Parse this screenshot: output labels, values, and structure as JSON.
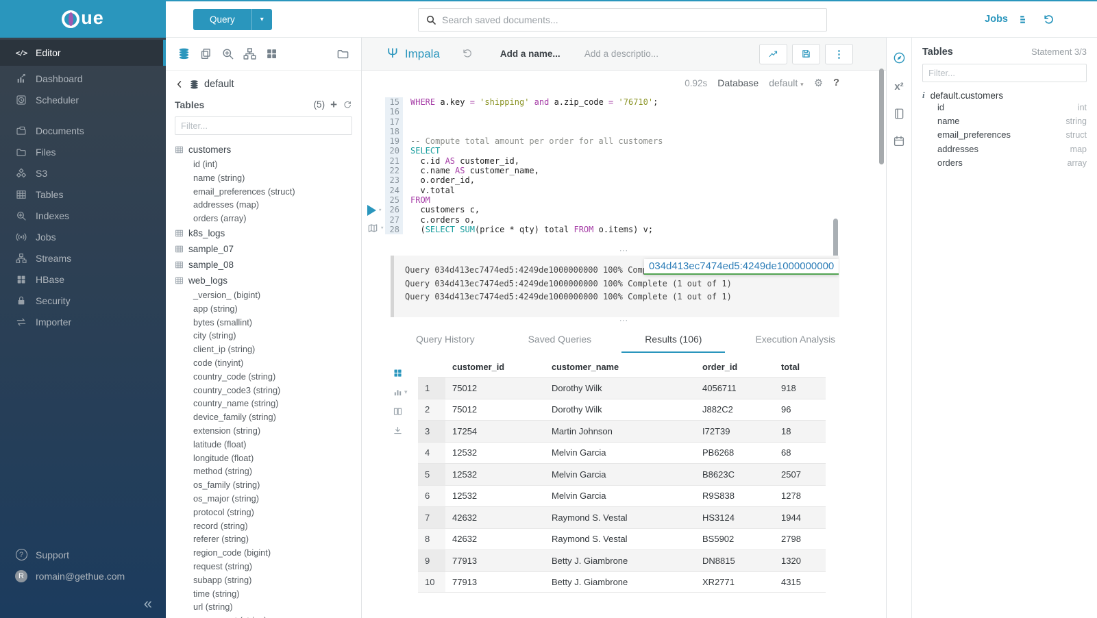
{
  "brand": {
    "logo_mark": "H",
    "logo_text": "ue"
  },
  "topbar": {
    "query_button": "Query",
    "search_placeholder": "Search saved documents...",
    "jobs_label": "Jobs"
  },
  "sidebar": {
    "items": [
      {
        "label": "Editor",
        "icon": "code",
        "active": true
      },
      {
        "label": "Dashboard",
        "icon": "dashboard"
      },
      {
        "label": "Scheduler",
        "icon": "scheduler"
      },
      {
        "label": "Documents",
        "icon": "documents",
        "gap_before": true
      },
      {
        "label": "Files",
        "icon": "folder"
      },
      {
        "label": "S3",
        "icon": "cubes"
      },
      {
        "label": "Tables",
        "icon": "table"
      },
      {
        "label": "Indexes",
        "icon": "zoom-in"
      },
      {
        "label": "Jobs",
        "icon": "radio"
      },
      {
        "label": "Streams",
        "icon": "sitemap"
      },
      {
        "label": "HBase",
        "icon": "grid"
      },
      {
        "label": "Security",
        "icon": "lock"
      },
      {
        "label": "Importer",
        "icon": "swap"
      }
    ],
    "support_label": "Support",
    "user_email": "romain@gethue.com",
    "user_initial": "R"
  },
  "left_panel": {
    "toolbar": [
      {
        "icon": "database",
        "active": true
      },
      {
        "icon": "copy"
      },
      {
        "icon": "zoom-in"
      },
      {
        "icon": "sitemap"
      },
      {
        "icon": "grid"
      }
    ],
    "toolbar_right": [
      {
        "icon": "folder"
      }
    ],
    "database_name": "default",
    "tables_label": "Tables",
    "tables_count": "(5)",
    "filter_placeholder": "Filter...",
    "tables": [
      {
        "name": "customers",
        "columns": [
          "id (int)",
          "name (string)",
          "email_preferences (struct)",
          "addresses (map)",
          "orders (array)"
        ]
      },
      {
        "name": "k8s_logs",
        "columns": []
      },
      {
        "name": "sample_07",
        "columns": []
      },
      {
        "name": "sample_08",
        "columns": []
      },
      {
        "name": "web_logs",
        "columns": [
          "_version_ (bigint)",
          "app (string)",
          "bytes (smallint)",
          "city (string)",
          "client_ip (string)",
          "code (tinyint)",
          "country_code (string)",
          "country_code3 (string)",
          "country_name (string)",
          "device_family (string)",
          "extension (string)",
          "latitude (float)",
          "longitude (float)",
          "method (string)",
          "os_family (string)",
          "os_major (string)",
          "protocol (string)",
          "record (string)",
          "referer (string)",
          "region_code (bigint)",
          "request (string)",
          "subapp (string)",
          "time (string)",
          "url (string)",
          "user_agent (string)"
        ]
      }
    ]
  },
  "editor": {
    "engine": "Impala",
    "name_placeholder": "Add a name...",
    "description_placeholder": "Add a descriptio...",
    "exec_time": "0.92s",
    "database_label": "Database",
    "database_value": "default",
    "code_lines": [
      {
        "no": "15",
        "segs": [
          [
            "WHERE",
            "kw"
          ],
          [
            " a.key ",
            "pl"
          ],
          [
            "=",
            "kw"
          ],
          [
            " ",
            "pl"
          ],
          [
            "'shipping'",
            "str"
          ],
          [
            " ",
            "pl"
          ],
          [
            "and",
            "kw"
          ],
          [
            " a.zip_code ",
            "pl"
          ],
          [
            "=",
            "kw"
          ],
          [
            " ",
            "pl"
          ],
          [
            "'76710'",
            "str"
          ],
          [
            ";",
            "pl"
          ]
        ]
      },
      {
        "no": "16",
        "segs": []
      },
      {
        "no": "17",
        "segs": []
      },
      {
        "no": "18",
        "segs": []
      },
      {
        "no": "19",
        "segs": [
          [
            "-- Compute total amount per order for all customers",
            "cmt"
          ]
        ]
      },
      {
        "no": "20",
        "segs": [
          [
            "SELECT",
            "fn"
          ]
        ]
      },
      {
        "no": "21",
        "segs": [
          [
            "  c.id ",
            "pl"
          ],
          [
            "AS",
            "kw"
          ],
          [
            " customer_id,",
            "pl"
          ]
        ]
      },
      {
        "no": "22",
        "segs": [
          [
            "  c.name ",
            "pl"
          ],
          [
            "AS",
            "kw"
          ],
          [
            " customer_name,",
            "pl"
          ]
        ]
      },
      {
        "no": "23",
        "segs": [
          [
            "  o.order_id,",
            "pl"
          ]
        ]
      },
      {
        "no": "24",
        "segs": [
          [
            "  v.total",
            "pl"
          ]
        ]
      },
      {
        "no": "25",
        "segs": [
          [
            "FROM",
            "kw"
          ]
        ]
      },
      {
        "no": "26",
        "segs": [
          [
            "  customers c,",
            "pl"
          ]
        ]
      },
      {
        "no": "27",
        "segs": [
          [
            "  c.orders o,",
            "pl"
          ]
        ]
      },
      {
        "no": "28",
        "segs": [
          [
            "  (",
            "pl"
          ],
          [
            "SELECT",
            "fn"
          ],
          [
            " ",
            "pl"
          ],
          [
            "SUM",
            "fn"
          ],
          [
            "(price * qty) total ",
            "pl"
          ],
          [
            "FROM",
            "kw"
          ],
          [
            " o.items) v;",
            "pl"
          ]
        ]
      }
    ],
    "log_lines": [
      "Query 034d413ec7474ed5:4249de1000000000 100% Complete (1 out of 1)",
      "Query 034d413ec7474ed5:4249de1000000000 100% Complete (1 out of 1)",
      "Query 034d413ec7474ed5:4249de1000000000 100% Complete (1 out of 1)"
    ],
    "query_id_tooltip": "034d413ec7474ed5:4249de1000000000",
    "tabs": [
      {
        "label": "Query History"
      },
      {
        "label": "Saved Queries"
      },
      {
        "label": "Results (106)",
        "active": true
      },
      {
        "label": "Execution Analysis"
      }
    ],
    "result_toolbar": [
      {
        "icon": "grid",
        "active": true
      },
      {
        "icon": "bar-chart",
        "caret": true
      },
      {
        "icon": "columns"
      },
      {
        "icon": "download"
      }
    ],
    "results": {
      "headers": [
        "customer_id",
        "customer_name",
        "order_id",
        "total"
      ],
      "rows": [
        [
          "1",
          "75012",
          "Dorothy Wilk",
          "4056711",
          "918"
        ],
        [
          "2",
          "75012",
          "Dorothy Wilk",
          "J882C2",
          "96"
        ],
        [
          "3",
          "17254",
          "Martin Johnson",
          "I72T39",
          "18"
        ],
        [
          "4",
          "12532",
          "Melvin Garcia",
          "PB6268",
          "68"
        ],
        [
          "5",
          "12532",
          "Melvin Garcia",
          "B8623C",
          "2507"
        ],
        [
          "6",
          "12532",
          "Melvin Garcia",
          "R9S838",
          "1278"
        ],
        [
          "7",
          "42632",
          "Raymond S. Vestal",
          "HS3124",
          "1944"
        ],
        [
          "8",
          "42632",
          "Raymond S. Vestal",
          "BS5902",
          "2798"
        ],
        [
          "9",
          "77913",
          "Betty J. Giambrone",
          "DN8815",
          "1320"
        ],
        [
          "10",
          "77913",
          "Betty J. Giambrone",
          "XR2771",
          "4315"
        ]
      ]
    }
  },
  "right_panel": {
    "rail": [
      {
        "icon": "compass",
        "active": true
      },
      {
        "icon": "functions"
      },
      {
        "icon": "book"
      },
      {
        "icon": "calendar"
      }
    ],
    "title": "Tables",
    "statement_label": "Statement 3/3",
    "filter_placeholder": "Filter...",
    "table_name": "default.customers",
    "columns": [
      {
        "name": "id",
        "type": "int"
      },
      {
        "name": "name",
        "type": "string"
      },
      {
        "name": "email_preferences",
        "type": "struct"
      },
      {
        "name": "addresses",
        "type": "map"
      },
      {
        "name": "orders",
        "type": "array"
      }
    ]
  },
  "colors": {
    "brand_teal": "#2a96bd",
    "sidebar_top": "#3a434c",
    "sidebar_bottom": "#1c3c5e",
    "keyword": "#a53ca6",
    "function_keyword": "#169c9c",
    "string": "#8a9324",
    "comment": "#8e908c",
    "tooltip_underline": "#51a351"
  }
}
